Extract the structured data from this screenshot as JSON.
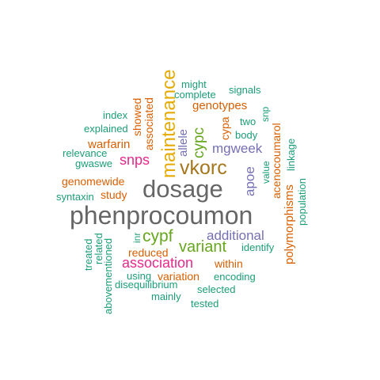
{
  "colors": {
    "green": "#1b9e77",
    "orange": "#d95f02",
    "purple": "#7570b3",
    "magenta": "#e7298a",
    "lime": "#66a61e",
    "gold": "#e6ab02",
    "brown": "#a6761d",
    "gray": "#666666"
  },
  "words": [
    {
      "id": "phenprocoumon",
      "text": "phenprocoumon",
      "color": "gray"
    },
    {
      "id": "dosage",
      "text": "dosage",
      "color": "gray"
    },
    {
      "id": "vkorc",
      "text": "vkorc",
      "color": "brown"
    },
    {
      "id": "maintenance",
      "text": "maintenance",
      "color": "gold"
    },
    {
      "id": "cypf",
      "text": "cypf",
      "color": "lime"
    },
    {
      "id": "variant",
      "text": "variant",
      "color": "lime"
    },
    {
      "id": "association",
      "text": "association",
      "color": "magenta"
    },
    {
      "id": "snps",
      "text": "snps",
      "color": "magenta"
    },
    {
      "id": "cypc",
      "text": "cypc",
      "color": "lime"
    },
    {
      "id": "mgweek",
      "text": "mgweek",
      "color": "purple"
    },
    {
      "id": "additional",
      "text": "additional",
      "color": "purple"
    },
    {
      "id": "apoe",
      "text": "apoe",
      "color": "purple"
    },
    {
      "id": "allele",
      "text": "allele",
      "color": "purple"
    },
    {
      "id": "warfarin",
      "text": "warfarin",
      "color": "orange"
    },
    {
      "id": "genotypes",
      "text": "genotypes",
      "color": "orange"
    },
    {
      "id": "genomewide",
      "text": "genomewide",
      "color": "orange"
    },
    {
      "id": "study",
      "text": "study",
      "color": "orange"
    },
    {
      "id": "reduced",
      "text": "reduced",
      "color": "orange"
    },
    {
      "id": "within",
      "text": "within",
      "color": "orange"
    },
    {
      "id": "variation",
      "text": "variation",
      "color": "orange"
    },
    {
      "id": "showed",
      "text": "showed",
      "color": "orange"
    },
    {
      "id": "associated",
      "text": "associated",
      "color": "orange"
    },
    {
      "id": "cypa",
      "text": "cypa",
      "color": "orange"
    },
    {
      "id": "acenocoumarol",
      "text": "acenocoumarol",
      "color": "orange"
    },
    {
      "id": "polymorphisms",
      "text": "polymorphisms",
      "color": "orange"
    },
    {
      "id": "might",
      "text": "might",
      "color": "green"
    },
    {
      "id": "signals",
      "text": "signals",
      "color": "green"
    },
    {
      "id": "complete",
      "text": "complete",
      "color": "green"
    },
    {
      "id": "index",
      "text": "index",
      "color": "green"
    },
    {
      "id": "explained",
      "text": "explained",
      "color": "green"
    },
    {
      "id": "relevance",
      "text": "relevance",
      "color": "green"
    },
    {
      "id": "gwaswe",
      "text": "gwaswe",
      "color": "green"
    },
    {
      "id": "syntaxin",
      "text": "syntaxin",
      "color": "green"
    },
    {
      "id": "two",
      "text": "two",
      "color": "green"
    },
    {
      "id": "snp",
      "text": "snp",
      "color": "green"
    },
    {
      "id": "body",
      "text": "body",
      "color": "green"
    },
    {
      "id": "value",
      "text": "value",
      "color": "green"
    },
    {
      "id": "linkage",
      "text": "linkage",
      "color": "green"
    },
    {
      "id": "population",
      "text": "population",
      "color": "green"
    },
    {
      "id": "inr",
      "text": "inr",
      "color": "green"
    },
    {
      "id": "identify",
      "text": "identify",
      "color": "green"
    },
    {
      "id": "treated",
      "text": "treated",
      "color": "green"
    },
    {
      "id": "related",
      "text": "related",
      "color": "green"
    },
    {
      "id": "abovementioned",
      "text": "abovementioned",
      "color": "green"
    },
    {
      "id": "using",
      "text": "using",
      "color": "green"
    },
    {
      "id": "encoding",
      "text": "encoding",
      "color": "green"
    },
    {
      "id": "disequilibrium",
      "text": "disequilibrium",
      "color": "green"
    },
    {
      "id": "selected",
      "text": "selected",
      "color": "green"
    },
    {
      "id": "mainly",
      "text": "mainly",
      "color": "green"
    },
    {
      "id": "tested",
      "text": "tested",
      "color": "green"
    }
  ]
}
